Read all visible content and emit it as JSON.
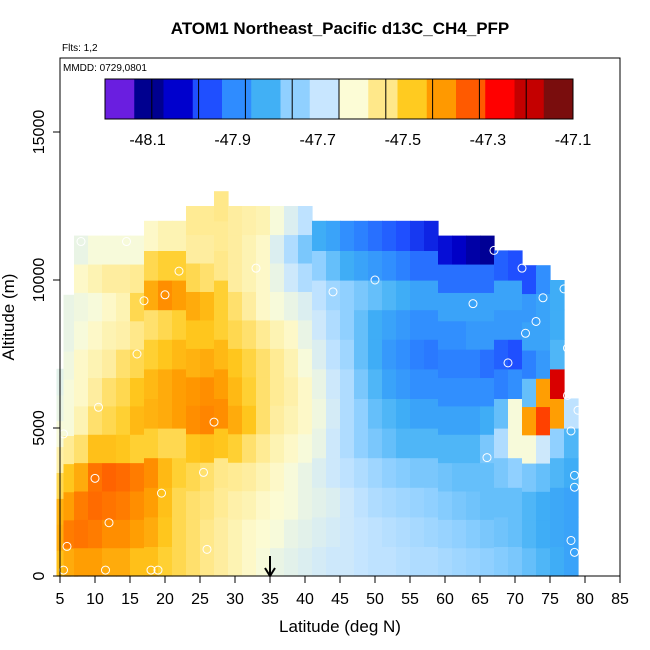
{
  "chart_data": {
    "type": "heatmap",
    "title": "ATOM1 Northeast_Pacific d13C_CH4_PFP",
    "flights_label": "Flts: 1,2",
    "mmdd_label": "MMDD: 0729,0801",
    "xlabel": "Latitude (deg N)",
    "ylabel": "Altitude (m)",
    "xlim": [
      5,
      85
    ],
    "ylim": [
      0,
      17500
    ],
    "x_ticks": [
      "5",
      "10",
      "15",
      "20",
      "25",
      "30",
      "35",
      "40",
      "45",
      "50",
      "55",
      "60",
      "65",
      "70",
      "75",
      "80",
      "85"
    ],
    "y_ticks": [
      "0",
      "5000",
      "10000",
      "15000"
    ],
    "y_tick_values": [
      0,
      5000,
      10000,
      15000
    ],
    "colorbar": {
      "min": -48.2,
      "max": -47.1,
      "tick_labels": [
        "-48.1",
        "-47.9",
        "-47.7",
        "-47.5",
        "-47.3",
        "-47.1"
      ],
      "tick_values": [
        -48.1,
        -47.9,
        -47.7,
        -47.5,
        -47.3,
        -47.1
      ],
      "colors": [
        "#6a1ee0",
        "#00008f",
        "#0000cd",
        "#1f4fff",
        "#2f8cff",
        "#41b0f5",
        "#90d0ff",
        "#c8e6ff",
        "#fcfcd6",
        "#ffe88a",
        "#ffcb20",
        "#ff9900",
        "#ff5a00",
        "#ff0000",
        "#c40000",
        "#7a0d0d"
      ]
    },
    "marker_arrow_latitude": 35,
    "sample_points": [
      {
        "lat": 5.5,
        "alt": 200
      },
      {
        "lat": 6,
        "alt": 1000
      },
      {
        "lat": 5.5,
        "alt": 4800
      },
      {
        "lat": 10,
        "alt": 3300
      },
      {
        "lat": 11.5,
        "alt": 200
      },
      {
        "lat": 12,
        "alt": 1800
      },
      {
        "lat": 10.5,
        "alt": 5700
      },
      {
        "lat": 8,
        "alt": 11300
      },
      {
        "lat": 14.5,
        "alt": 11300
      },
      {
        "lat": 16,
        "alt": 7500
      },
      {
        "lat": 18,
        "alt": 200
      },
      {
        "lat": 19,
        "alt": 200
      },
      {
        "lat": 19.5,
        "alt": 2800
      },
      {
        "lat": 17,
        "alt": 9300
      },
      {
        "lat": 20,
        "alt": 9500
      },
      {
        "lat": 22,
        "alt": 10300
      },
      {
        "lat": 25.5,
        "alt": 3500
      },
      {
        "lat": 26,
        "alt": 900
      },
      {
        "lat": 27,
        "alt": 5200
      },
      {
        "lat": 33,
        "alt": 10400
      },
      {
        "lat": 44,
        "alt": 9600
      },
      {
        "lat": 50,
        "alt": 10000
      },
      {
        "lat": 64,
        "alt": 9200
      },
      {
        "lat": 66,
        "alt": 4000
      },
      {
        "lat": 69,
        "alt": 7200
      },
      {
        "lat": 71,
        "alt": 10400
      },
      {
        "lat": 71.5,
        "alt": 8200
      },
      {
        "lat": 73,
        "alt": 8600
      },
      {
        "lat": 74,
        "alt": 9400
      },
      {
        "lat": 77,
        "alt": 9700
      },
      {
        "lat": 77.5,
        "alt": 7700
      },
      {
        "lat": 77.5,
        "alt": 6100
      },
      {
        "lat": 78,
        "alt": 4900
      },
      {
        "lat": 78.5,
        "alt": 3400
      },
      {
        "lat": 78,
        "alt": 1200
      },
      {
        "lat": 78.5,
        "alt": 800
      },
      {
        "lat": 78.5,
        "alt": 3000
      },
      {
        "lat": 79,
        "alt": 5600
      },
      {
        "lat": 67,
        "alt": 11000
      }
    ],
    "columns": [
      {
        "lat": 5.5,
        "top": 7000,
        "values": [
          -47.45,
          -47.42,
          -47.43,
          -47.5,
          -47.57,
          -47.62,
          -47.64,
          -47.65
        ]
      },
      {
        "lat": 6.5,
        "top": 9500,
        "values": [
          -47.42,
          -47.36,
          -47.4,
          -47.46,
          -47.55,
          -47.62,
          -47.62,
          -47.63,
          -47.64,
          -47.64
        ]
      },
      {
        "lat": 8,
        "top": 11500,
        "values": [
          -47.4,
          -47.35,
          -47.36,
          -47.42,
          -47.52,
          -47.58,
          -47.6,
          -47.6,
          -47.62,
          -47.63,
          -47.6,
          -47.64
        ]
      },
      {
        "lat": 10,
        "top": 11500,
        "values": [
          -47.4,
          -47.36,
          -47.34,
          -47.35,
          -47.45,
          -47.52,
          -47.56,
          -47.58,
          -47.6,
          -47.62,
          -47.58,
          -47.62
        ]
      },
      {
        "lat": 12,
        "top": 11500,
        "values": [
          -47.42,
          -47.38,
          -47.35,
          -47.33,
          -47.45,
          -47.5,
          -47.52,
          -47.56,
          -47.58,
          -47.6,
          -47.56,
          -47.62
        ]
      },
      {
        "lat": 14,
        "top": 11500,
        "values": [
          -47.42,
          -47.38,
          -47.36,
          -47.34,
          -47.46,
          -47.48,
          -47.5,
          -47.52,
          -47.57,
          -47.58,
          -47.56,
          -47.62
        ]
      },
      {
        "lat": 16,
        "top": 11500,
        "values": [
          -47.45,
          -47.4,
          -47.38,
          -47.36,
          -47.48,
          -47.44,
          -47.46,
          -47.5,
          -47.54,
          -47.5,
          -47.55,
          -47.62
        ]
      },
      {
        "lat": 18,
        "top": 12000,
        "values": [
          -47.45,
          -47.42,
          -47.4,
          -47.38,
          -47.48,
          -47.43,
          -47.44,
          -47.48,
          -47.52,
          -47.42,
          -47.5,
          -47.6
        ]
      },
      {
        "lat": 20,
        "top": 12000,
        "values": [
          -47.48,
          -47.46,
          -47.45,
          -47.44,
          -47.5,
          -47.42,
          -47.42,
          -47.46,
          -47.5,
          -47.38,
          -47.48,
          -47.58
        ]
      },
      {
        "lat": 22,
        "top": 12000,
        "values": [
          -47.5,
          -47.5,
          -47.5,
          -47.48,
          -47.5,
          -47.4,
          -47.4,
          -47.44,
          -47.48,
          -47.4,
          -47.48,
          -47.58
        ]
      },
      {
        "lat": 24,
        "top": 12500,
        "values": [
          -47.52,
          -47.52,
          -47.52,
          -47.5,
          -47.46,
          -47.38,
          -47.39,
          -47.43,
          -47.46,
          -47.42,
          -47.5,
          -47.56,
          -47.55
        ]
      },
      {
        "lat": 26,
        "top": 12500,
        "values": [
          -47.54,
          -47.54,
          -47.53,
          -47.52,
          -47.45,
          -47.37,
          -47.38,
          -47.42,
          -47.46,
          -47.44,
          -47.52,
          -47.56,
          -47.55
        ]
      },
      {
        "lat": 28,
        "top": 13000,
        "values": [
          -47.56,
          -47.56,
          -47.55,
          -47.54,
          -47.46,
          -47.38,
          -47.4,
          -47.44,
          -47.48,
          -47.48,
          -47.54,
          -47.55,
          -47.54
        ]
      },
      {
        "lat": 30,
        "top": 12500,
        "values": [
          -47.58,
          -47.58,
          -47.57,
          -47.55,
          -47.48,
          -47.42,
          -47.44,
          -47.46,
          -47.5,
          -47.52,
          -47.56,
          -47.56,
          -47.56
        ]
      },
      {
        "lat": 32,
        "top": 12500,
        "values": [
          -47.6,
          -47.6,
          -47.58,
          -47.56,
          -47.52,
          -47.46,
          -47.48,
          -47.49,
          -47.52,
          -47.56,
          -47.58,
          -47.58,
          -47.57
        ]
      },
      {
        "lat": 34,
        "top": 12500,
        "values": [
          -47.62,
          -47.61,
          -47.6,
          -47.58,
          -47.55,
          -47.52,
          -47.52,
          -47.52,
          -47.55,
          -47.6,
          -47.6,
          -47.6,
          -47.58
        ]
      },
      {
        "lat": 36,
        "top": 12500,
        "values": [
          -47.64,
          -47.62,
          -47.61,
          -47.6,
          -47.58,
          -47.56,
          -47.55,
          -47.55,
          -47.58,
          -47.62,
          -47.64,
          -47.66,
          -47.62
        ]
      },
      {
        "lat": 38,
        "top": 12500,
        "values": [
          -47.65,
          -47.64,
          -47.62,
          -47.62,
          -47.6,
          -47.58,
          -47.57,
          -47.58,
          -47.6,
          -47.64,
          -47.68,
          -47.72,
          -47.66
        ]
      },
      {
        "lat": 40,
        "top": 12500,
        "values": [
          -47.66,
          -47.65,
          -47.64,
          -47.64,
          -47.62,
          -47.6,
          -47.6,
          -47.62,
          -47.64,
          -47.66,
          -47.72,
          -47.78,
          -47.7
        ]
      },
      {
        "lat": 42,
        "top": 12000,
        "values": [
          -47.67,
          -47.66,
          -47.65,
          -47.66,
          -47.64,
          -47.63,
          -47.64,
          -47.66,
          -47.68,
          -47.7,
          -47.76,
          -47.84
        ]
      },
      {
        "lat": 44,
        "top": 12000,
        "values": [
          -47.68,
          -47.67,
          -47.66,
          -47.68,
          -47.68,
          -47.67,
          -47.68,
          -47.7,
          -47.72,
          -47.74,
          -47.8,
          -47.86
        ]
      },
      {
        "lat": 46,
        "top": 12000,
        "values": [
          -47.68,
          -47.68,
          -47.68,
          -47.7,
          -47.72,
          -47.72,
          -47.72,
          -47.74,
          -47.76,
          -47.76,
          -47.84,
          -47.9
        ]
      },
      {
        "lat": 48,
        "top": 12000,
        "values": [
          -47.69,
          -47.69,
          -47.7,
          -47.72,
          -47.76,
          -47.76,
          -47.78,
          -47.8,
          -47.8,
          -47.78,
          -47.86,
          -47.92
        ]
      },
      {
        "lat": 50,
        "top": 12000,
        "values": [
          -47.7,
          -47.7,
          -47.72,
          -47.74,
          -47.78,
          -47.8,
          -47.82,
          -47.84,
          -47.84,
          -47.8,
          -47.88,
          -47.94
        ]
      },
      {
        "lat": 52,
        "top": 12000,
        "values": [
          -47.7,
          -47.71,
          -47.73,
          -47.76,
          -47.8,
          -47.82,
          -47.86,
          -47.88,
          -47.86,
          -47.82,
          -47.9,
          -47.96
        ]
      },
      {
        "lat": 54,
        "top": 12000,
        "values": [
          -47.71,
          -47.72,
          -47.74,
          -47.77,
          -47.82,
          -47.84,
          -47.88,
          -47.9,
          -47.88,
          -47.84,
          -47.92,
          -47.98
        ]
      },
      {
        "lat": 56,
        "top": 12000,
        "values": [
          -47.72,
          -47.73,
          -47.75,
          -47.78,
          -47.82,
          -47.86,
          -47.9,
          -47.92,
          -47.9,
          -47.86,
          -47.94,
          -48.0
        ]
      },
      {
        "lat": 58,
        "top": 12000,
        "values": [
          -47.72,
          -47.74,
          -47.76,
          -47.78,
          -47.82,
          -47.86,
          -47.9,
          -47.93,
          -47.9,
          -47.86,
          -47.94,
          -48.02
        ]
      },
      {
        "lat": 60,
        "top": 11500,
        "values": [
          -47.73,
          -47.75,
          -47.77,
          -47.79,
          -47.82,
          -47.86,
          -47.9,
          -47.92,
          -47.9,
          -47.86,
          -47.94,
          -48.04
        ]
      },
      {
        "lat": 62,
        "top": 11500,
        "values": [
          -47.74,
          -47.76,
          -47.78,
          -47.8,
          -47.82,
          -47.86,
          -47.9,
          -47.92,
          -47.9,
          -47.86,
          -47.94,
          -48.06
        ]
      },
      {
        "lat": 64,
        "top": 11500,
        "values": [
          -47.75,
          -47.77,
          -47.79,
          -47.8,
          -47.82,
          -47.86,
          -47.9,
          -47.92,
          -47.88,
          -47.86,
          -47.94,
          -48.1
        ]
      },
      {
        "lat": 66,
        "top": 11500,
        "values": [
          -47.76,
          -47.78,
          -47.8,
          -47.8,
          -47.78,
          -47.84,
          -47.9,
          -47.94,
          -47.88,
          -47.86,
          -47.94,
          -48.12
        ]
      },
      {
        "lat": 68,
        "top": 11000,
        "values": [
          -47.77,
          -47.79,
          -47.8,
          -47.78,
          -47.72,
          -47.8,
          -47.92,
          -47.96,
          -47.88,
          -47.86,
          -47.96
        ]
      },
      {
        "lat": 70,
        "top": 11000,
        "values": [
          -47.78,
          -47.8,
          -47.8,
          -47.76,
          -47.62,
          -47.62,
          -47.9,
          -47.98,
          -47.88,
          -47.86,
          -47.98
        ]
      },
      {
        "lat": 72,
        "top": 10500,
        "values": [
          -47.8,
          -47.82,
          -47.82,
          -47.78,
          -47.62,
          -47.4,
          -47.8,
          -47.92,
          -47.86,
          -47.88,
          -47.98
        ]
      },
      {
        "lat": 74,
        "top": 10500,
        "values": [
          -47.82,
          -47.84,
          -47.84,
          -47.8,
          -47.68,
          -47.3,
          -47.4,
          -47.88,
          -47.86,
          -47.86,
          -47.9
        ]
      },
      {
        "lat": 76,
        "top": 10000,
        "values": [
          -47.84,
          -47.85,
          -47.85,
          -47.82,
          -47.76,
          -47.4,
          -47.2,
          -47.82,
          -47.84,
          -47.84
        ]
      },
      {
        "lat": 78,
        "top": 6000,
        "values": [
          -47.86,
          -47.86,
          -47.86,
          -47.84,
          -47.82,
          -47.7
        ]
      }
    ]
  }
}
